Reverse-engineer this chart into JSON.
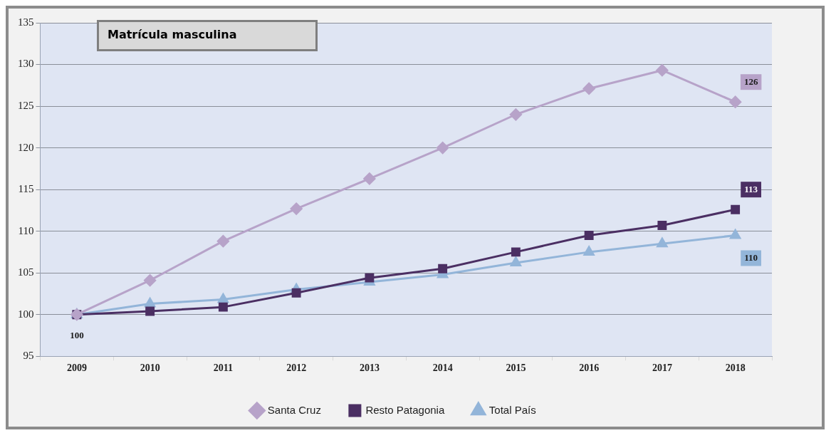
{
  "chart_data": {
    "type": "line",
    "title": "Matrícula masculina",
    "categories": [
      "2009",
      "2010",
      "2011",
      "2012",
      "2013",
      "2014",
      "2015",
      "2016",
      "2017",
      "2018"
    ],
    "series": [
      {
        "name": "Santa Cruz",
        "color": "#b7a3c9",
        "marker": "diamond",
        "values": [
          100,
          104.1,
          108.8,
          112.7,
          116.3,
          120.0,
          124.0,
          127.1,
          129.3,
          125.5
        ],
        "value_labels": [
          null,
          null,
          null,
          null,
          null,
          null,
          null,
          null,
          null,
          "126"
        ]
      },
      {
        "name": "Resto Patagonia",
        "color": "#4b2f63",
        "marker": "square",
        "values": [
          100,
          100.4,
          100.9,
          102.6,
          104.4,
          105.5,
          107.5,
          109.5,
          110.7,
          112.6
        ],
        "value_labels": [
          null,
          null,
          null,
          null,
          null,
          null,
          null,
          null,
          null,
          "113"
        ]
      },
      {
        "name": "Total País",
        "color": "#93b5d9",
        "marker": "triangle",
        "values": [
          100,
          101.3,
          101.8,
          103.0,
          103.9,
          104.8,
          106.2,
          107.5,
          108.5,
          109.5
        ],
        "value_labels": [
          "100",
          null,
          null,
          null,
          null,
          null,
          null,
          null,
          null,
          "110"
        ]
      }
    ],
    "ylim": [
      95,
      135
    ],
    "yticks": [
      95,
      100,
      105,
      110,
      115,
      120,
      125,
      130,
      135
    ],
    "grid": "y",
    "legend": "bottom",
    "line_style": "solid"
  }
}
